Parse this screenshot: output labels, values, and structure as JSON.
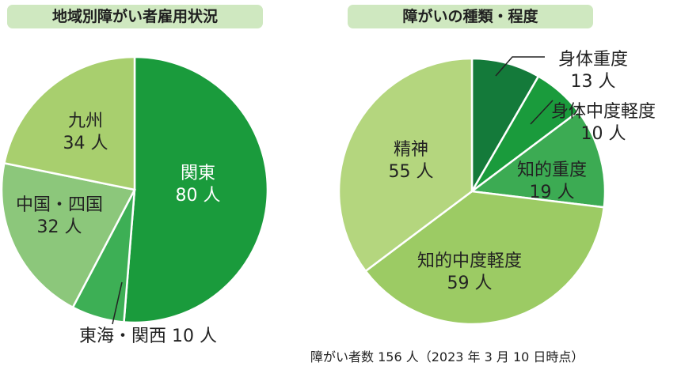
{
  "chart_data": [
    {
      "type": "pie",
      "title": "地域別障がい者雇用状況",
      "slices": [
        {
          "name": "関東",
          "label": "関東",
          "value_label": "80 人",
          "value": 80,
          "color": "#1a9b3c"
        },
        {
          "name": "東海・関西",
          "label": "東海・関西 10 人",
          "value_label": "",
          "value": 10,
          "color": "#3daf55"
        },
        {
          "name": "中国・四国",
          "label": "中国・四国",
          "value_label": "32 人",
          "value": 32,
          "color": "#8cc77b"
        },
        {
          "name": "九州",
          "label": "九州",
          "value_label": "34 人",
          "value": 34,
          "color": "#a8cf6e"
        }
      ]
    },
    {
      "type": "pie",
      "title": "障がいの種類・程度",
      "slices": [
        {
          "name": "身体重度",
          "label": "身体重度",
          "value_label": "13 人",
          "value": 13,
          "color": "#147a3a"
        },
        {
          "name": "身体中度軽度",
          "label": "身体中度軽度",
          "value_label": "10 人",
          "value": 10,
          "color": "#1a9b3c"
        },
        {
          "name": "知的重度",
          "label": "知的重度",
          "value_label": "19 人",
          "value": 19,
          "color": "#3cab53"
        },
        {
          "name": "知的中度軽度",
          "label": "知的中度軽度",
          "value_label": "59 人",
          "value": 59,
          "color": "#9ccb64"
        },
        {
          "name": "精神",
          "label": "精神",
          "value_label": "55 人",
          "value": 55,
          "color": "#b4d67e"
        }
      ]
    }
  ],
  "footnote": "障がい者数 156 人（2023 年 3 月 10 日時点）"
}
